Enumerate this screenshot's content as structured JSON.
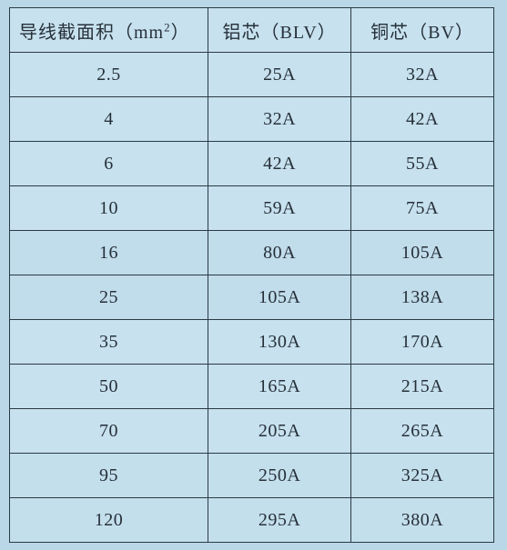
{
  "table": {
    "background_color": "#c7e1ee",
    "border_color": "#2a3a44",
    "text_color": "#263039",
    "header_fontsize": 20,
    "cell_fontsize": 20,
    "col_widths_pct": [
      41,
      29.5,
      29.5
    ],
    "columns": [
      {
        "label_prefix": "导线截面积（mm",
        "label_sup": "2",
        "label_suffix": "）"
      },
      {
        "label": "铝芯（BLV）"
      },
      {
        "label": "铜芯（BV）"
      }
    ],
    "rows": [
      {
        "area": "2.5",
        "blv": "25A",
        "bv": "32A"
      },
      {
        "area": "4",
        "blv": "32A",
        "bv": "42A"
      },
      {
        "area": "6",
        "blv": "42A",
        "bv": "55A"
      },
      {
        "area": "10",
        "blv": "59A",
        "bv": "75A"
      },
      {
        "area": "16",
        "blv": "80A",
        "bv": "105A"
      },
      {
        "area": "25",
        "blv": "105A",
        "bv": "138A"
      },
      {
        "area": "35",
        "blv": "130A",
        "bv": "170A"
      },
      {
        "area": "50",
        "blv": "165A",
        "bv": "215A"
      },
      {
        "area": "70",
        "blv": "205A",
        "bv": "265A"
      },
      {
        "area": "95",
        "blv": "250A",
        "bv": "325A"
      },
      {
        "area": "120",
        "blv": "295A",
        "bv": "380A"
      }
    ]
  }
}
